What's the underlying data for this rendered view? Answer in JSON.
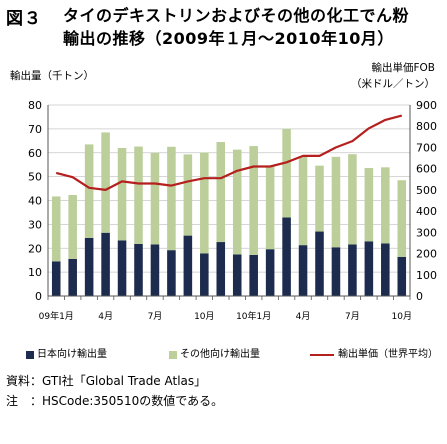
{
  "figure": {
    "number": "図３",
    "title_line1": "タイのデキストリンおよびその他の化工でん粉",
    "title_line2": "輸出の推移（2009年１月～2010年10月）"
  },
  "chart_data": {
    "type": "bar",
    "stacked": true,
    "categories": [
      "09年1月",
      "2",
      "3",
      "4月",
      "5",
      "6",
      "7月",
      "8",
      "9",
      "10月",
      "11",
      "12",
      "10年1月",
      "2",
      "3",
      "4月",
      "5",
      "6",
      "7月",
      "8",
      "9",
      "10月"
    ],
    "category_labels_shown": [
      "09年1月",
      "4月",
      "7月",
      "10月",
      "10年1月",
      "4月",
      "7月",
      "10月"
    ],
    "series": [
      {
        "name": "日本向け輸出量",
        "type": "bar",
        "axis": "left",
        "color": "#1c2b4e",
        "values": [
          14.5,
          15.5,
          24.3,
          26.5,
          23.3,
          21.8,
          21.6,
          19.2,
          25.3,
          17.8,
          22.6,
          17.4,
          17.2,
          19.6,
          32.9,
          21.3,
          27.0,
          20.4,
          21.6,
          22.9,
          22.0,
          16.4
        ]
      },
      {
        "name": "その他向け輸出量",
        "type": "bar",
        "axis": "left",
        "color": "#bccf9a",
        "values": [
          27.2,
          26.8,
          39.2,
          42.0,
          38.7,
          40.8,
          38.4,
          43.3,
          34.0,
          42.3,
          41.9,
          43.9,
          45.6,
          34.7,
          37.1,
          37.2,
          27.6,
          37.9,
          37.8,
          30.7,
          31.9,
          32.1
        ]
      },
      {
        "name": "輸出単価（世界平均）",
        "type": "line",
        "axis": "right",
        "color": "#b5201f",
        "values": [
          580,
          560,
          510,
          500,
          540,
          530,
          530,
          520,
          540,
          555,
          555,
          590,
          610,
          610,
          630,
          660,
          660,
          700,
          730,
          790,
          830,
          850
        ]
      }
    ],
    "y_left": {
      "label": "輸出量（千トン）",
      "ylim": [
        0,
        80
      ],
      "ticks": [
        0,
        10,
        20,
        30,
        40,
        50,
        60,
        70,
        80
      ]
    },
    "y_right": {
      "label_line1": "輸出単価FOB",
      "label_line2": "（米ドル／トン）",
      "ylim": [
        0,
        900
      ],
      "ticks": [
        0,
        100,
        200,
        300,
        400,
        500,
        600,
        700,
        800,
        900
      ]
    },
    "grid": true,
    "legend_position": "bottom"
  },
  "notes": {
    "source_label": "資料：",
    "source_text": "GTI社「Global Trade Atlas」",
    "note_label": "注",
    "note_text": "：HSCode:350510の数値である。"
  }
}
